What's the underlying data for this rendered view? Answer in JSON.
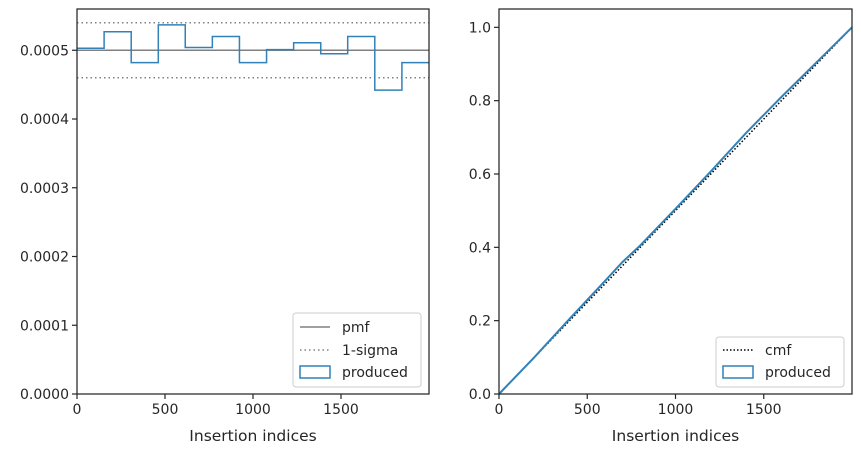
{
  "chart_data": [
    {
      "type": "step",
      "xlabel": "Insertion indices",
      "ylabel": "",
      "xlim": [
        0,
        2000
      ],
      "ylim": [
        0,
        0.00056
      ],
      "xticks": [
        0,
        500,
        1000,
        1500
      ],
      "xtick_labels": [
        "0",
        "500",
        "1000",
        "1500"
      ],
      "yticks": [
        0,
        0.0001,
        0.0002,
        0.0003,
        0.0004,
        0.0005
      ],
      "ytick_labels": [
        "0.0000",
        "0.0001",
        "0.0002",
        "0.0003",
        "0.0004",
        "0.0005"
      ],
      "grid": false,
      "legend": "bottom-right",
      "pmf": 0.0005,
      "sigma_band": [
        0.00046,
        0.00054
      ],
      "bin_edges": [
        0,
        154,
        308,
        462,
        615,
        769,
        923,
        1077,
        1231,
        1385,
        1538,
        1692,
        1846,
        2000
      ],
      "produced": [
        0.000503,
        0.000527,
        0.000482,
        0.000537,
        0.000504,
        0.00052,
        0.000482,
        0.000501,
        0.000511,
        0.000495,
        0.00052,
        0.000442,
        0.000482
      ],
      "series": [
        {
          "name": "pmf",
          "color": "#808080",
          "style": "solid"
        },
        {
          "name": "1-sigma",
          "color": "#808080",
          "style": "dotted"
        },
        {
          "name": "produced",
          "color": "#3182b8",
          "style": "step"
        }
      ]
    },
    {
      "type": "line",
      "xlabel": "Insertion indices",
      "ylabel": "",
      "xlim": [
        0,
        2000
      ],
      "ylim": [
        0,
        1.05
      ],
      "xticks": [
        0,
        500,
        1000,
        1500
      ],
      "xtick_labels": [
        "0",
        "500",
        "1000",
        "1500"
      ],
      "yticks": [
        0,
        0.2,
        0.4,
        0.6,
        0.8,
        1.0
      ],
      "ytick_labels": [
        "0.0",
        "0.2",
        "0.4",
        "0.6",
        "0.8",
        "1.0"
      ],
      "grid": false,
      "legend": "bottom-right",
      "cmf": {
        "x": [
          0,
          2000
        ],
        "y": [
          0,
          1.0
        ]
      },
      "produced": {
        "x": [
          0,
          200,
          400,
          600,
          700,
          800,
          1000,
          1200,
          1400,
          1600,
          1800,
          2000
        ],
        "y": [
          0,
          0.1,
          0.205,
          0.308,
          0.36,
          0.405,
          0.505,
          0.607,
          0.712,
          0.81,
          0.905,
          1.0
        ]
      },
      "series": [
        {
          "name": "cmf",
          "color": "#000000",
          "style": "dotted"
        },
        {
          "name": "produced",
          "color": "#3182b8",
          "style": "line"
        }
      ]
    }
  ]
}
